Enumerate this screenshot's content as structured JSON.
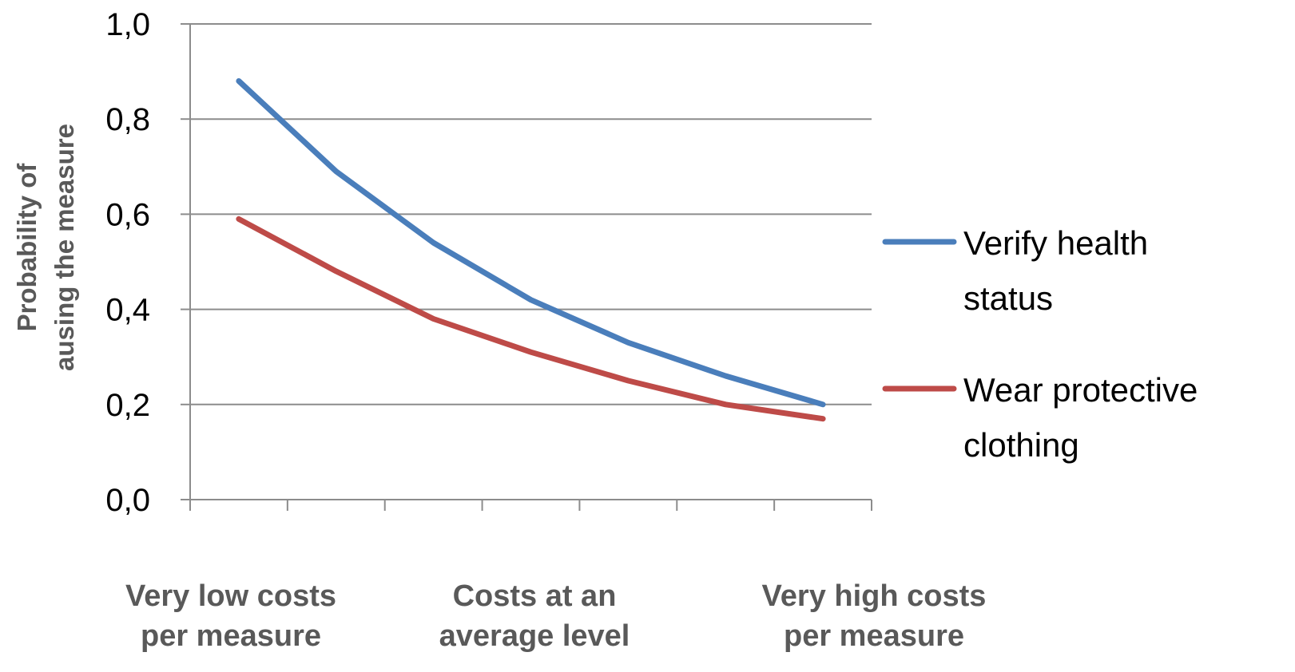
{
  "chart_data": {
    "type": "line",
    "ylabel_lines": [
      "Probability of",
      "ausing the measure"
    ],
    "ylim": [
      0,
      1
    ],
    "yticks": [
      "0,0",
      "0,2",
      "0,4",
      "0,6",
      "0,8",
      "1,0"
    ],
    "grid": true,
    "legend_position": "right",
    "x_category_labels": [
      [
        "Very low costs",
        "per measure"
      ],
      [
        "Costs at an",
        "average level"
      ],
      [
        "Very high costs",
        "per measure"
      ]
    ],
    "series": [
      {
        "name_lines": [
          "Verify health",
          "status"
        ],
        "color": "#4a7ebb",
        "values": [
          0.88,
          0.69,
          0.54,
          0.42,
          0.33,
          0.26,
          0.2
        ]
      },
      {
        "name_lines": [
          "Wear protective",
          "clothing"
        ],
        "color": "#be4b48",
        "values": [
          0.59,
          0.48,
          0.38,
          0.31,
          0.25,
          0.2,
          0.17
        ]
      }
    ]
  }
}
